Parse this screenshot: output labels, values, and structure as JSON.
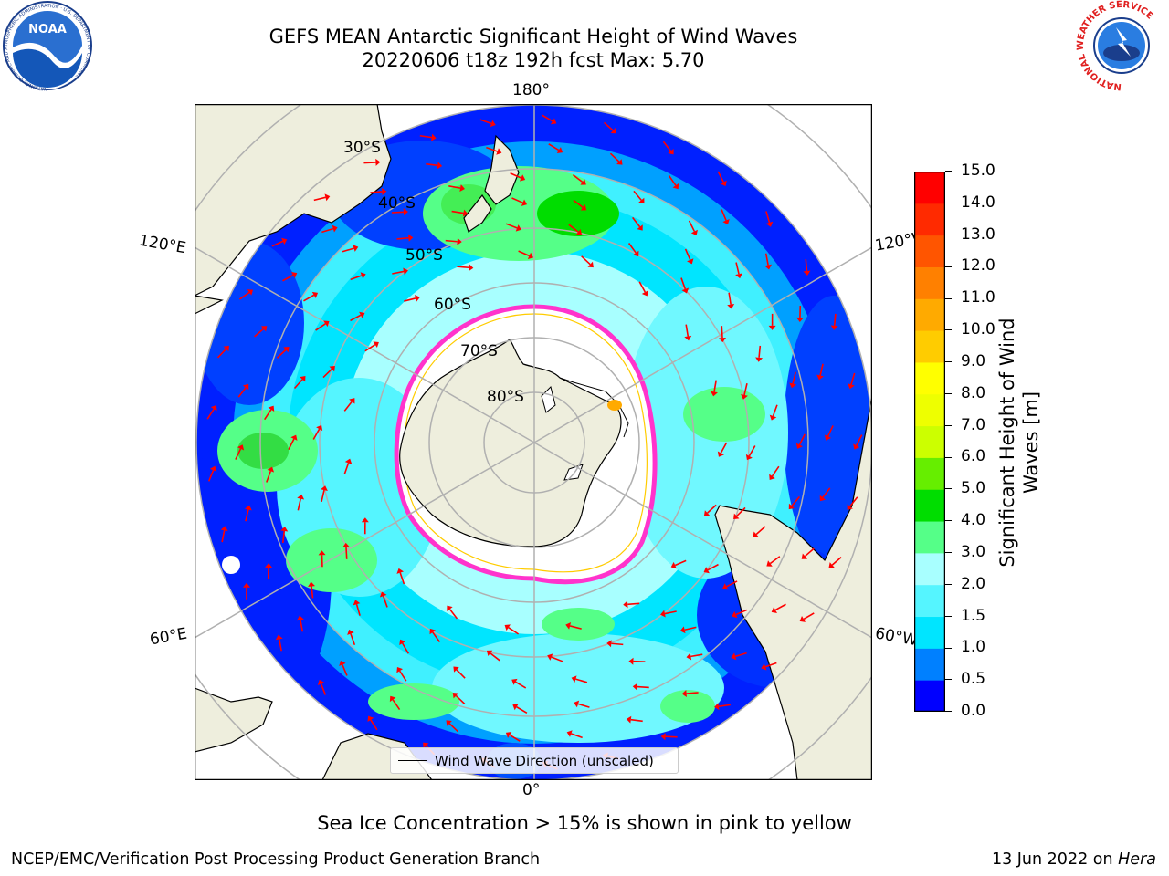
{
  "header": {
    "title_line1": "GEFS MEAN Antarctic Significant Height of Wind Waves",
    "title_line2": "20220606 t18z 192h fcst   Max: 5.70"
  },
  "logos": {
    "noaa_text": "NOAA",
    "noaa_ring_text": "NATIONAL OCEANIC AND ATMOSPHERIC ADMINISTRATION · U.S. DEPARTMENT OF COMMERCE",
    "nws_ring_text": "NATIONAL WEATHER SERVICE"
  },
  "map": {
    "projection": "south-polar-stereographic",
    "longitude_labels": {
      "top": "180°",
      "bottom": "0°",
      "left_upper": "120°E",
      "left_lower": "60°E",
      "right_upper": "120°W",
      "right_lower": "60°W"
    },
    "latitude_labels": [
      "30°S",
      "40°S",
      "50°S",
      "60°S",
      "70°S",
      "80°S"
    ],
    "colors": {
      "land": "#eeeedd",
      "ice": "#ffffff",
      "arrow": "#ff0000",
      "grid": "#b0b0b0",
      "sea_ice_edge": "#ff33cc"
    }
  },
  "legend": {
    "label": "Wind Wave Direction (unscaled)"
  },
  "colorbar": {
    "label_line1": "Significant Height of Wind",
    "label_line2": "Waves [m]",
    "ticks": [
      "0.0",
      "0.5",
      "1.0",
      "1.5",
      "2.0",
      "3.0",
      "4.0",
      "5.0",
      "6.0",
      "7.0",
      "8.0",
      "9.0",
      "10.0",
      "11.0",
      "12.0",
      "13.0",
      "14.0",
      "15.0"
    ],
    "colors": [
      "#0000ff",
      "#0080ff",
      "#00e5ff",
      "#55f5ff",
      "#a8ffff",
      "#55ff88",
      "#00dd00",
      "#66ee00",
      "#ccff00",
      "#eeff00",
      "#ffff00",
      "#ffcc00",
      "#ffaa00",
      "#ff8000",
      "#ff5500",
      "#ff2a00",
      "#ff0000"
    ]
  },
  "note": "Sea Ice Concentration > 15% is shown in pink to yellow",
  "footer": {
    "left": "NCEP/EMC/Verification Post Processing Product Generation Branch",
    "right_prefix": "13 Jun 2022 on ",
    "right_host": "Hera"
  }
}
